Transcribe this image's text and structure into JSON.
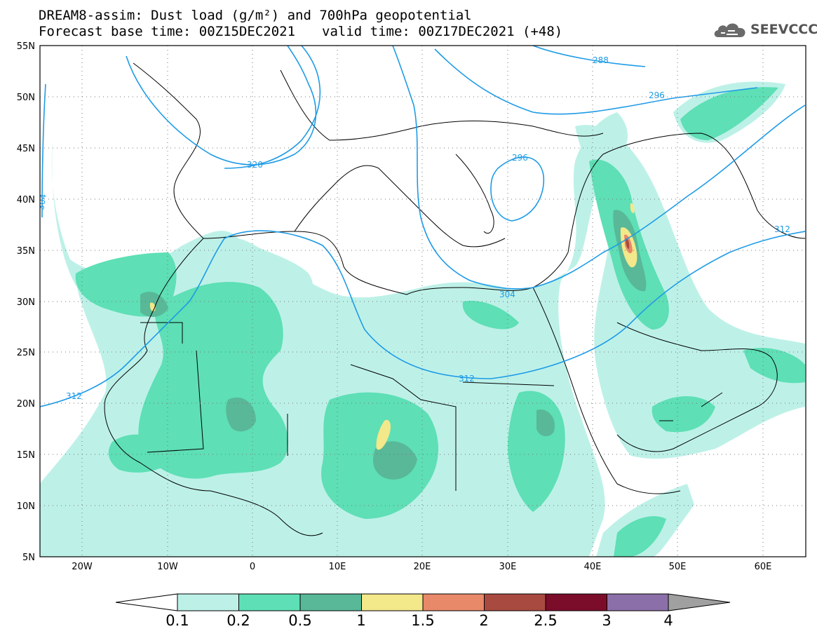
{
  "title": {
    "line1": "DREAM8-assim: Dust load (g/m²) and 700hPa geopotential",
    "base": "Forecast base time: 00Z15DEC2021",
    "valid": "valid time: 00Z17DEC2021 (+48)"
  },
  "logo": {
    "text": "SEEVCCC",
    "icon": "cloud-icon"
  },
  "map": {
    "lon_range": [
      -25,
      65
    ],
    "lat_range": [
      5,
      55
    ],
    "lat_ticks": [
      "55N",
      "50N",
      "45N",
      "40N",
      "35N",
      "30N",
      "25N",
      "20N",
      "15N",
      "10N",
      "5N"
    ],
    "lon_ticks": [
      "20W",
      "10W",
      "0",
      "10E",
      "20E",
      "30E",
      "40E",
      "50E",
      "60E"
    ],
    "gridlines": "dotted"
  },
  "geopotential_labels": [
    "288",
    "296",
    "296",
    "304",
    "304",
    "312",
    "312",
    "312",
    "320"
  ],
  "colorbar": {
    "ticks": [
      "0.1",
      "0.2",
      "0.5",
      "1",
      "1.5",
      "2",
      "2.5",
      "3",
      "4"
    ],
    "colors": [
      "#bdf1e8",
      "#5edfb5",
      "#58b898",
      "#f3e88a",
      "#e8896a",
      "#a94a40",
      "#7b0d2a",
      "#8b6fa8",
      "#a0a0a0"
    ]
  },
  "chart_data": {
    "type": "heatmap",
    "variable": "Dust load (g/m²)",
    "levels": [
      0.1,
      0.2,
      0.5,
      1,
      1.5,
      2,
      2.5,
      3,
      4
    ],
    "contours": {
      "variable": "700hPa geopotential",
      "levels": [
        288,
        296,
        304,
        312,
        320
      ]
    }
  }
}
